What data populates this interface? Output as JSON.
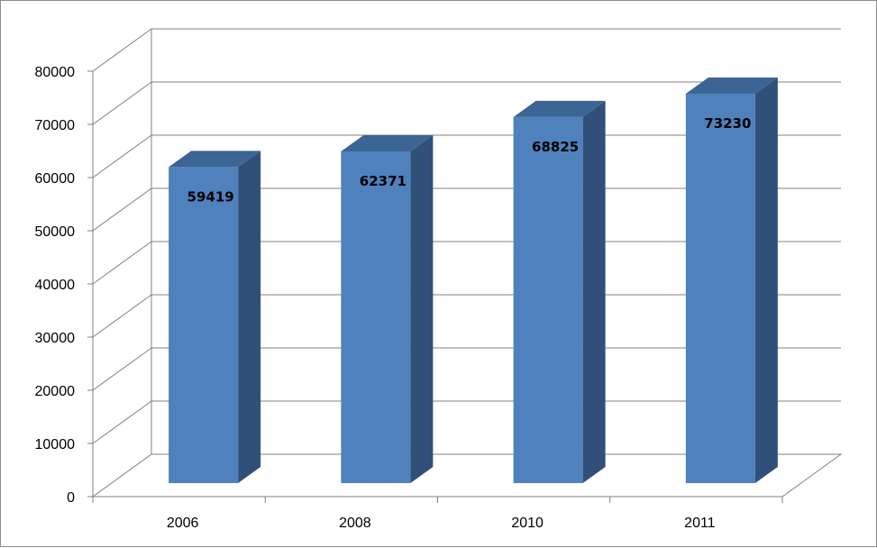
{
  "chart_data": {
    "type": "bar",
    "categories": [
      "2006",
      "2008",
      "2010",
      "2011"
    ],
    "values": [
      59419,
      62371,
      68825,
      73230
    ],
    "data_labels": [
      "59419",
      "62371",
      "68825",
      "73230"
    ],
    "title": "",
    "xlabel": "",
    "ylabel": "",
    "ylim": [
      0,
      80000
    ],
    "yticks": [
      0,
      10000,
      20000,
      30000,
      40000,
      50000,
      60000,
      70000,
      80000
    ],
    "ytick_labels": [
      "0",
      "10000",
      "20000",
      "30000",
      "40000",
      "50000",
      "60000",
      "70000",
      "80000"
    ],
    "grid": true,
    "legend": "none",
    "three_d": true,
    "colors": {
      "bar_front": "#4f81bd",
      "bar_side": "#30507a",
      "bar_top": "#3c6494",
      "grid": "#808080"
    }
  }
}
